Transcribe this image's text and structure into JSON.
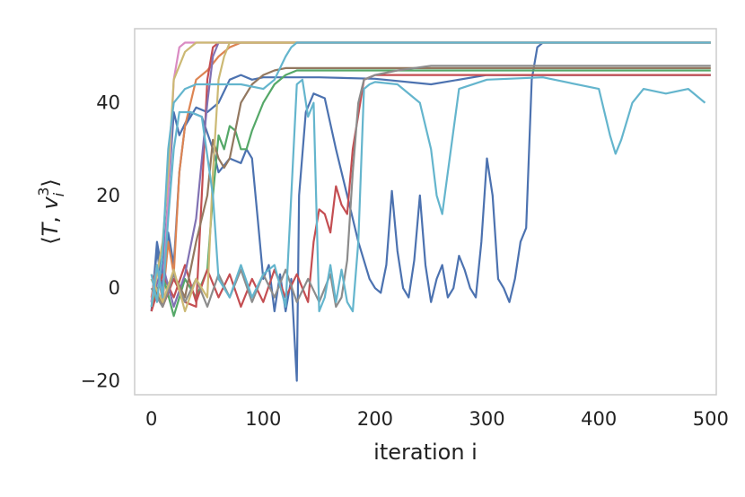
{
  "chart_data": {
    "type": "line",
    "title": "",
    "xlabel": "iteration i",
    "ylabel": "⟨T, v_i^3⟩",
    "xlim": [
      -15,
      505
    ],
    "ylim": [
      -23,
      56
    ],
    "xticks": [
      0,
      100,
      200,
      300,
      400,
      500
    ],
    "yticks": [
      -20,
      0,
      20,
      40
    ],
    "grid": false,
    "legend": "none",
    "series": [
      {
        "color": "#4c72b0",
        "points": [
          [
            0,
            -5
          ],
          [
            5,
            10
          ],
          [
            10,
            3
          ],
          [
            15,
            20
          ],
          [
            20,
            38
          ],
          [
            25,
            33
          ],
          [
            35,
            38
          ],
          [
            45,
            37
          ],
          [
            55,
            30
          ],
          [
            60,
            25
          ],
          [
            70,
            28
          ],
          [
            80,
            27
          ],
          [
            85,
            30
          ],
          [
            90,
            28
          ],
          [
            95,
            15
          ],
          [
            100,
            2
          ],
          [
            105,
            5
          ],
          [
            110,
            -5
          ],
          [
            115,
            3
          ],
          [
            120,
            -5
          ],
          [
            125,
            2
          ],
          [
            130,
            -20
          ],
          [
            132,
            20
          ],
          [
            138,
            38
          ],
          [
            145,
            42
          ],
          [
            155,
            41
          ],
          [
            165,
            30
          ],
          [
            175,
            20
          ],
          [
            185,
            10
          ],
          [
            195,
            2
          ],
          [
            200,
            0
          ],
          [
            205,
            -1
          ],
          [
            210,
            5
          ],
          [
            215,
            21
          ],
          [
            220,
            8
          ],
          [
            225,
            0
          ],
          [
            230,
            -2
          ],
          [
            235,
            6
          ],
          [
            240,
            20
          ],
          [
            245,
            5
          ],
          [
            250,
            -3
          ],
          [
            255,
            2
          ],
          [
            260,
            5
          ],
          [
            265,
            -2
          ],
          [
            270,
            0
          ],
          [
            275,
            7
          ],
          [
            280,
            4
          ],
          [
            285,
            0
          ],
          [
            290,
            -2
          ],
          [
            295,
            10
          ],
          [
            300,
            28
          ],
          [
            305,
            20
          ],
          [
            310,
            2
          ],
          [
            315,
            0
          ],
          [
            320,
            -3
          ],
          [
            325,
            2
          ],
          [
            330,
            10
          ],
          [
            335,
            13
          ],
          [
            340,
            45
          ],
          [
            345,
            52
          ],
          [
            350,
            53
          ],
          [
            360,
            53
          ],
          [
            500,
            53
          ]
        ]
      },
      {
        "color": "#4c72b0",
        "points": [
          [
            0,
            -3
          ],
          [
            5,
            8
          ],
          [
            10,
            0
          ],
          [
            15,
            12
          ],
          [
            20,
            5
          ],
          [
            25,
            25
          ],
          [
            30,
            35
          ],
          [
            40,
            39
          ],
          [
            50,
            38
          ],
          [
            60,
            40
          ],
          [
            70,
            45
          ],
          [
            80,
            46
          ],
          [
            90,
            45
          ],
          [
            100,
            45.5
          ],
          [
            150,
            45.5
          ],
          [
            200,
            45.2
          ],
          [
            250,
            44
          ],
          [
            300,
            46
          ],
          [
            350,
            46
          ],
          [
            500,
            46
          ]
        ]
      },
      {
        "color": "#dd8452",
        "points": [
          [
            0,
            -2
          ],
          [
            5,
            5
          ],
          [
            10,
            -3
          ],
          [
            15,
            10
          ],
          [
            20,
            3
          ],
          [
            25,
            25
          ],
          [
            30,
            35
          ],
          [
            40,
            45
          ],
          [
            50,
            47
          ],
          [
            60,
            50
          ],
          [
            70,
            52
          ],
          [
            80,
            53
          ],
          [
            500,
            53
          ]
        ]
      },
      {
        "color": "#55a868",
        "points": [
          [
            0,
            -4
          ],
          [
            10,
            3
          ],
          [
            20,
            -6
          ],
          [
            30,
            2
          ],
          [
            40,
            -2
          ],
          [
            50,
            4
          ],
          [
            55,
            20
          ],
          [
            60,
            33
          ],
          [
            65,
            30
          ],
          [
            70,
            35
          ],
          [
            75,
            34
          ],
          [
            80,
            30
          ],
          [
            85,
            30
          ],
          [
            90,
            34
          ],
          [
            100,
            40
          ],
          [
            110,
            44
          ],
          [
            120,
            46
          ],
          [
            130,
            47
          ],
          [
            500,
            47
          ]
        ]
      },
      {
        "color": "#c44e52",
        "points": [
          [
            0,
            3
          ],
          [
            10,
            -4
          ],
          [
            20,
            2
          ],
          [
            30,
            -3
          ],
          [
            40,
            -4
          ],
          [
            45,
            20
          ],
          [
            50,
            45
          ],
          [
            55,
            52
          ],
          [
            60,
            53
          ],
          [
            500,
            53
          ]
        ]
      },
      {
        "color": "#c44e52",
        "points": [
          [
            0,
            -5
          ],
          [
            10,
            3
          ],
          [
            20,
            -2
          ],
          [
            30,
            5
          ],
          [
            40,
            -3
          ],
          [
            50,
            4
          ],
          [
            60,
            -2
          ],
          [
            70,
            3
          ],
          [
            80,
            -4
          ],
          [
            90,
            2
          ],
          [
            100,
            -3
          ],
          [
            110,
            4
          ],
          [
            120,
            -2
          ],
          [
            130,
            3
          ],
          [
            140,
            -3
          ],
          [
            145,
            10
          ],
          [
            150,
            17
          ],
          [
            155,
            16
          ],
          [
            160,
            12
          ],
          [
            165,
            22
          ],
          [
            170,
            18
          ],
          [
            175,
            16
          ],
          [
            180,
            30
          ],
          [
            190,
            45
          ],
          [
            200,
            46
          ],
          [
            500,
            46
          ]
        ]
      },
      {
        "color": "#8172b3",
        "points": [
          [
            0,
            -3
          ],
          [
            10,
            5
          ],
          [
            20,
            -4
          ],
          [
            30,
            3
          ],
          [
            40,
            15
          ],
          [
            50,
            40
          ],
          [
            55,
            50
          ],
          [
            60,
            53
          ],
          [
            500,
            53
          ]
        ]
      },
      {
        "color": "#937860",
        "points": [
          [
            0,
            2
          ],
          [
            10,
            -4
          ],
          [
            20,
            3
          ],
          [
            30,
            -2
          ],
          [
            40,
            10
          ],
          [
            50,
            20
          ],
          [
            55,
            32
          ],
          [
            60,
            28
          ],
          [
            65,
            26
          ],
          [
            70,
            28
          ],
          [
            75,
            34
          ],
          [
            80,
            40
          ],
          [
            90,
            44
          ],
          [
            100,
            46
          ],
          [
            110,
            47
          ],
          [
            120,
            47.5
          ],
          [
            500,
            47.5
          ]
        ]
      },
      {
        "color": "#da8bc3",
        "points": [
          [
            0,
            -3
          ],
          [
            5,
            5
          ],
          [
            10,
            -2
          ],
          [
            15,
            20
          ],
          [
            20,
            45
          ],
          [
            25,
            52
          ],
          [
            30,
            53
          ],
          [
            500,
            53
          ]
        ]
      },
      {
        "color": "#8c8c8c",
        "points": [
          [
            0,
            0
          ],
          [
            10,
            -4
          ],
          [
            20,
            3
          ],
          [
            30,
            -3
          ],
          [
            40,
            2
          ],
          [
            50,
            -4
          ],
          [
            60,
            3
          ],
          [
            70,
            -2
          ],
          [
            80,
            4
          ],
          [
            90,
            -3
          ],
          [
            100,
            3
          ],
          [
            110,
            -2
          ],
          [
            120,
            4
          ],
          [
            130,
            -3
          ],
          [
            140,
            2
          ],
          [
            150,
            -3
          ],
          [
            160,
            3
          ],
          [
            165,
            -4
          ],
          [
            170,
            -2
          ],
          [
            175,
            6
          ],
          [
            180,
            25
          ],
          [
            185,
            40
          ],
          [
            190,
            45
          ],
          [
            200,
            46
          ],
          [
            220,
            47
          ],
          [
            250,
            48
          ],
          [
            300,
            48
          ],
          [
            500,
            48
          ]
        ]
      },
      {
        "color": "#ccb974",
        "points": [
          [
            0,
            -4
          ],
          [
            5,
            3
          ],
          [
            10,
            10
          ],
          [
            15,
            25
          ],
          [
            20,
            45
          ],
          [
            30,
            51
          ],
          [
            40,
            53
          ],
          [
            500,
            53
          ]
        ]
      },
      {
        "color": "#ccb974",
        "points": [
          [
            0,
            2
          ],
          [
            10,
            -3
          ],
          [
            20,
            4
          ],
          [
            30,
            -5
          ],
          [
            40,
            2
          ],
          [
            50,
            -2
          ],
          [
            55,
            25
          ],
          [
            60,
            45
          ],
          [
            65,
            50
          ],
          [
            70,
            53
          ],
          [
            500,
            53
          ]
        ]
      },
      {
        "color": "#64b5cd",
        "points": [
          [
            0,
            -4
          ],
          [
            5,
            5
          ],
          [
            10,
            -2
          ],
          [
            15,
            15
          ],
          [
            20,
            30
          ],
          [
            25,
            38
          ],
          [
            35,
            38
          ],
          [
            45,
            37
          ],
          [
            55,
            20
          ],
          [
            60,
            2
          ],
          [
            70,
            -2
          ],
          [
            80,
            5
          ],
          [
            90,
            -2
          ],
          [
            100,
            3
          ],
          [
            110,
            5
          ],
          [
            120,
            -4
          ],
          [
            125,
            20
          ],
          [
            130,
            44
          ],
          [
            135,
            45
          ],
          [
            140,
            37
          ],
          [
            145,
            40
          ],
          [
            150,
            -5
          ],
          [
            155,
            -2
          ],
          [
            160,
            5
          ],
          [
            165,
            -3
          ],
          [
            170,
            4
          ],
          [
            175,
            -3
          ],
          [
            180,
            -5
          ],
          [
            185,
            10
          ],
          [
            190,
            43
          ],
          [
            195,
            44
          ],
          [
            200,
            44.5
          ],
          [
            220,
            44
          ],
          [
            240,
            40
          ],
          [
            250,
            30
          ],
          [
            255,
            20
          ],
          [
            260,
            16
          ],
          [
            265,
            25
          ],
          [
            275,
            43
          ],
          [
            300,
            45
          ],
          [
            350,
            45.5
          ],
          [
            400,
            43
          ],
          [
            410,
            33
          ],
          [
            415,
            29
          ],
          [
            420,
            32
          ],
          [
            430,
            40
          ],
          [
            440,
            43
          ],
          [
            460,
            42
          ],
          [
            480,
            43
          ],
          [
            495,
            40
          ]
        ]
      },
      {
        "color": "#64b5cd",
        "points": [
          [
            0,
            3
          ],
          [
            5,
            -3
          ],
          [
            10,
            8
          ],
          [
            15,
            30
          ],
          [
            20,
            40
          ],
          [
            30,
            43
          ],
          [
            40,
            44
          ],
          [
            60,
            44
          ],
          [
            80,
            44
          ],
          [
            100,
            43
          ],
          [
            110,
            45
          ],
          [
            120,
            50
          ],
          [
            125,
            52
          ],
          [
            130,
            53
          ],
          [
            500,
            53
          ]
        ]
      }
    ]
  }
}
